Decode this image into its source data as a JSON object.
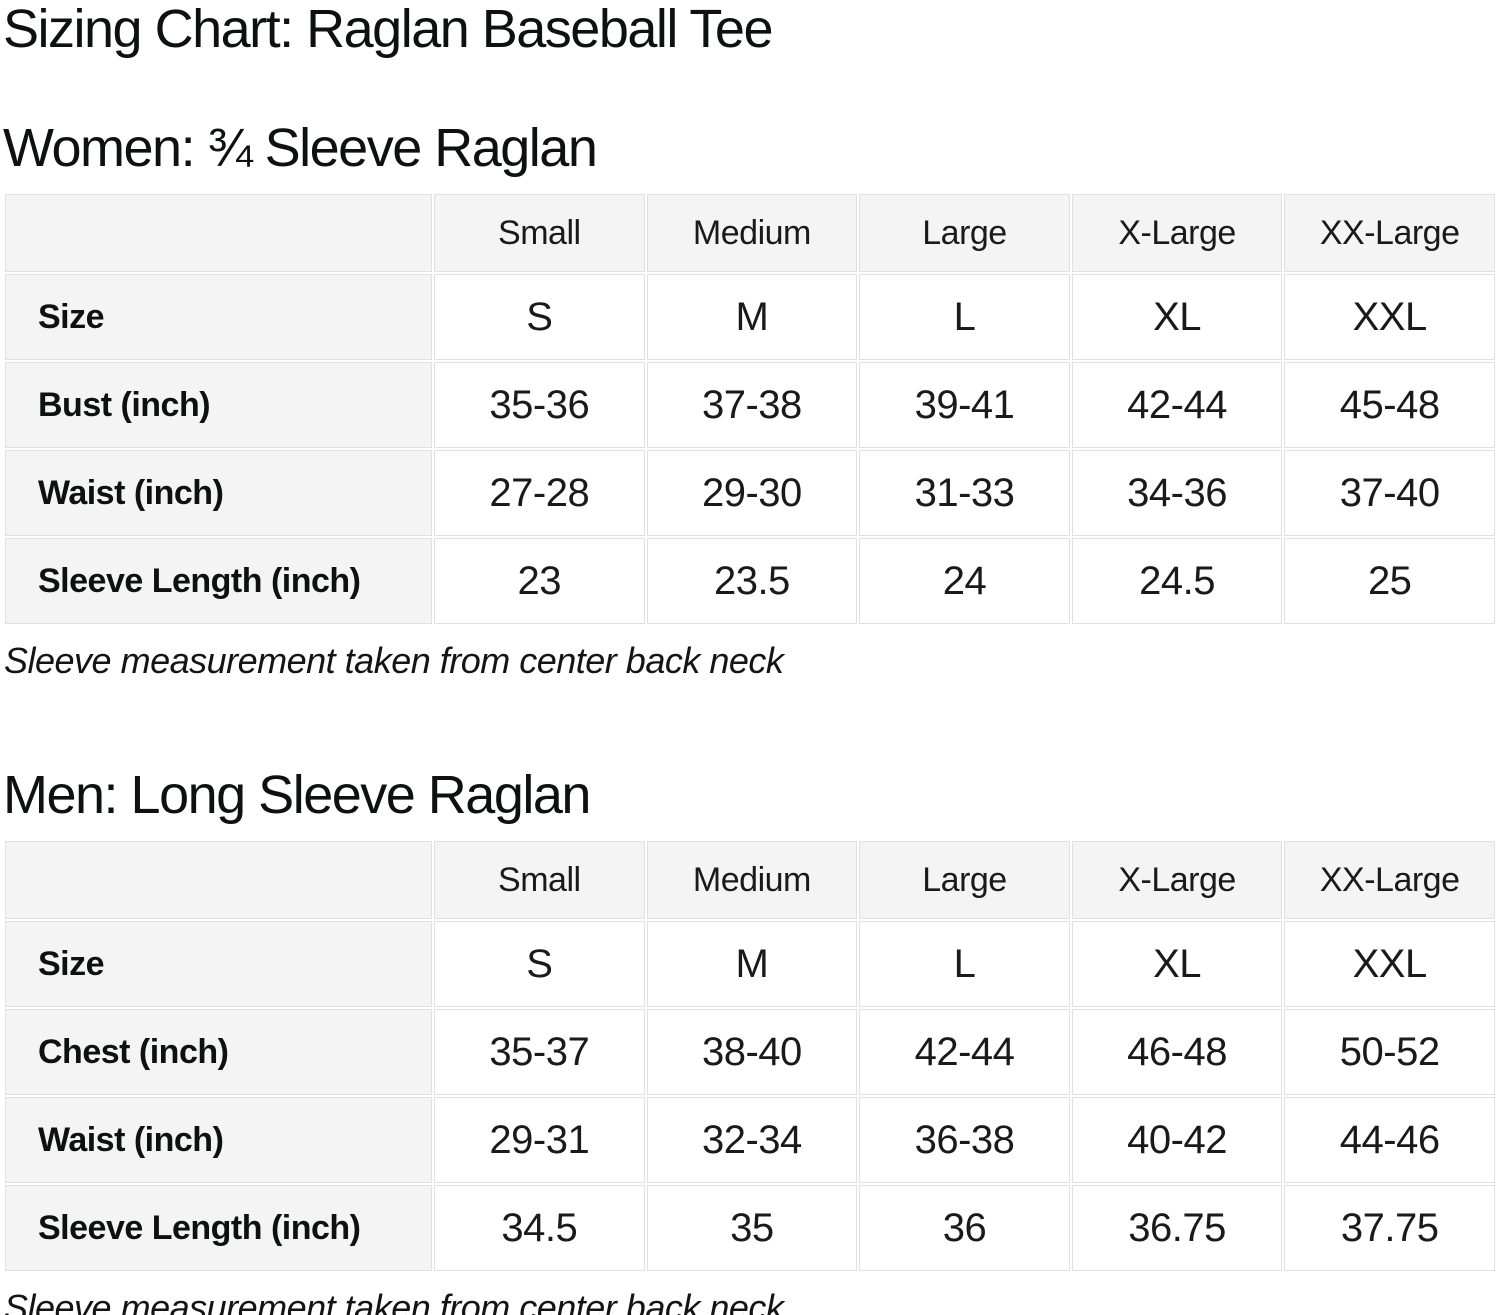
{
  "page": {
    "title": "Sizing Chart: Raglan Baseball Tee"
  },
  "colors": {
    "background": "#ffffff",
    "header_cell_bg": "#f4f4f4",
    "cell_border": "#e0e0e0",
    "text": "#111111"
  },
  "sections": [
    {
      "heading": "Women: ¾ Sleeve Raglan",
      "note": "Sleeve measurement taken from center back neck",
      "table": {
        "column_headers": [
          "",
          "Small",
          "Medium",
          "Large",
          "X-Large",
          "XX-Large"
        ],
        "rows": [
          {
            "label": "Size",
            "values": [
              "S",
              "M",
              "L",
              "XL",
              "XXL"
            ]
          },
          {
            "label": "Bust (inch)",
            "values": [
              "35-36",
              "37-38",
              "39-41",
              "42-44",
              "45-48"
            ]
          },
          {
            "label": "Waist (inch)",
            "values": [
              "27-28",
              "29-30",
              "31-33",
              "34-36",
              "37-40"
            ]
          },
          {
            "label": "Sleeve Length (inch)",
            "values": [
              "23",
              "23.5",
              "24",
              "24.5",
              "25"
            ]
          }
        ]
      }
    },
    {
      "heading": "Men: Long Sleeve Raglan",
      "note": "Sleeve measurement taken from center back neck",
      "table": {
        "column_headers": [
          "",
          "Small",
          "Medium",
          "Large",
          "X-Large",
          "XX-Large"
        ],
        "rows": [
          {
            "label": "Size",
            "values": [
              "S",
              "M",
              "L",
              "XL",
              "XXL"
            ]
          },
          {
            "label": "Chest (inch)",
            "values": [
              "35-37",
              "38-40",
              "42-44",
              "46-48",
              "50-52"
            ]
          },
          {
            "label": "Waist (inch)",
            "values": [
              "29-31",
              "32-34",
              "36-38",
              "40-42",
              "44-46"
            ]
          },
          {
            "label": "Sleeve Length (inch)",
            "values": [
              "34.5",
              "35",
              "36",
              "36.75",
              "37.75"
            ]
          }
        ]
      }
    }
  ]
}
